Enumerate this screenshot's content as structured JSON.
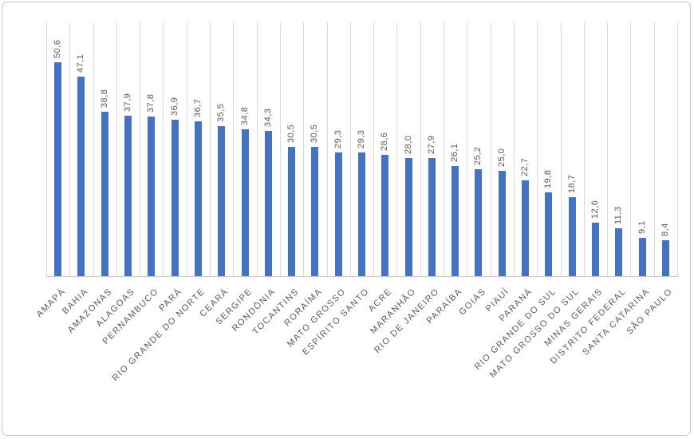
{
  "chart_data": {
    "type": "bar",
    "title": "",
    "xlabel": "",
    "ylabel": "",
    "ylim": [
      0,
      60
    ],
    "grid": "vertical-category-separators",
    "legend": "none",
    "y_axis_visible": false,
    "decimal_separator": ",",
    "categories": [
      "AMAPÁ",
      "BAHIA",
      "AMAZONAS",
      "ALAGOAS",
      "PERNAMBUCO",
      "PARÁ",
      "RIO GRANDE DO NORTE",
      "CEARÁ",
      "SERGIPE",
      "RONDÔNIA",
      "TOCANTINS",
      "RORAÍMA",
      "MATO GROSSO",
      "ESPÍRITO SANTO",
      "ACRE",
      "MARANHÃO",
      "RIO DE JANEIRO",
      "PARAÍBA",
      "GOIÁS",
      "PIAUÍ",
      "PARANÁ",
      "RIO GRANDE DO SUL",
      "MATO GROSSO DO SUL",
      "MINAS GERAIS",
      "DISTRITO FEDERAL",
      "SANTA CATARINA",
      "SÃO PAULO"
    ],
    "values": [
      50.6,
      47.1,
      38.8,
      37.9,
      37.8,
      36.9,
      36.7,
      35.5,
      34.8,
      34.3,
      30.5,
      30.5,
      29.3,
      29.3,
      28.6,
      28.0,
      27.9,
      26.1,
      25.2,
      25.0,
      22.7,
      19.8,
      18.7,
      12.6,
      11.3,
      9.1,
      8.4
    ],
    "value_labels": [
      "50,6",
      "47,1",
      "38,8",
      "37,9",
      "37,8",
      "36,9",
      "36,7",
      "35,5",
      "34,8",
      "34,3",
      "30,5",
      "30,5",
      "29,3",
      "29,3",
      "28,6",
      "28,0",
      "27,9",
      "26,1",
      "25,2",
      "25,0",
      "22,7",
      "19,8",
      "18,7",
      "12,6",
      "11,3",
      "9,1",
      "8,4"
    ],
    "colors": {
      "bar": "#4472C4",
      "value_label_text": "#595959",
      "category_label_text": "#595959",
      "gridline": "#D9D9D9",
      "axis_line": "#C9C9C9",
      "frame_border": "#C6C6C6",
      "background": "#FFFFFF"
    }
  }
}
